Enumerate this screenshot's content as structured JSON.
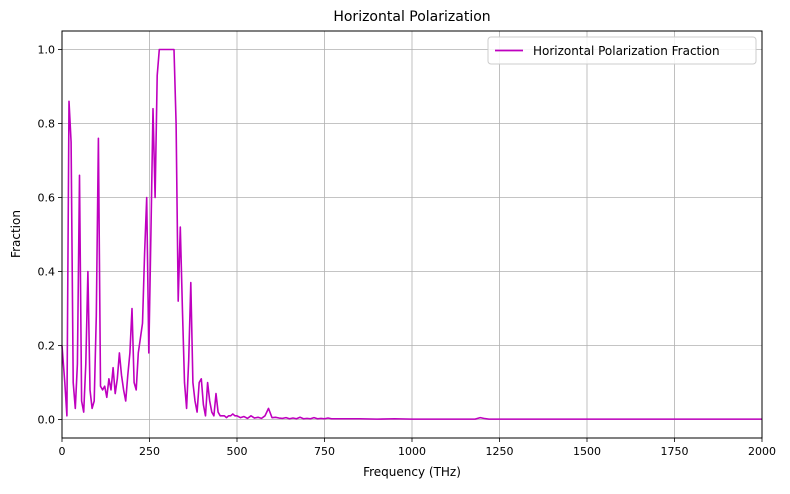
{
  "chart_data": {
    "type": "line",
    "title": "Horizontal Polarization",
    "xlabel": "Frequency (THz)",
    "ylabel": "Fraction",
    "xlim": [
      0,
      2000
    ],
    "ylim": [
      -0.05,
      1.05
    ],
    "xticks": [
      0,
      250,
      500,
      750,
      1000,
      1250,
      1500,
      1750,
      2000
    ],
    "yticks": [
      0.0,
      0.2,
      0.4,
      0.6,
      0.8,
      1.0
    ],
    "xtick_labels": [
      "0",
      "250",
      "500",
      "750",
      "1000",
      "1250",
      "1500",
      "1750",
      "2000"
    ],
    "ytick_labels": [
      "0.0",
      "0.2",
      "0.4",
      "0.6",
      "0.8",
      "1.0"
    ],
    "grid": true,
    "legend_position": "top-right",
    "series": [
      {
        "name": "Horizontal Polarization Fraction",
        "color": "#bf00bf",
        "x": [
          0,
          8,
          14,
          20,
          26,
          32,
          38,
          44,
          50,
          56,
          62,
          68,
          74,
          80,
          86,
          92,
          98,
          104,
          110,
          116,
          122,
          128,
          134,
          140,
          146,
          152,
          158,
          164,
          170,
          176,
          182,
          188,
          194,
          200,
          206,
          212,
          218,
          224,
          230,
          236,
          242,
          248,
          254,
          260,
          266,
          272,
          278,
          284,
          290,
          296,
          300,
          320,
          326,
          332,
          338,
          344,
          350,
          356,
          362,
          368,
          374,
          380,
          386,
          392,
          398,
          404,
          410,
          416,
          422,
          428,
          434,
          440,
          446,
          452,
          458,
          464,
          470,
          476,
          482,
          488,
          494,
          500,
          510,
          520,
          530,
          540,
          550,
          560,
          570,
          580,
          590,
          600,
          610,
          620,
          630,
          640,
          650,
          660,
          670,
          680,
          690,
          700,
          710,
          720,
          730,
          740,
          750,
          760,
          770,
          800,
          850,
          900,
          950,
          1000,
          1050,
          1100,
          1150,
          1180,
          1195,
          1205,
          1220,
          1250,
          1300,
          1400,
          1500,
          1600,
          1700,
          1800,
          1900,
          2000
        ],
        "y": [
          0.2,
          0.1,
          0.01,
          0.86,
          0.75,
          0.1,
          0.03,
          0.15,
          0.66,
          0.05,
          0.02,
          0.15,
          0.4,
          0.08,
          0.03,
          0.05,
          0.28,
          0.76,
          0.09,
          0.08,
          0.09,
          0.06,
          0.11,
          0.08,
          0.14,
          0.07,
          0.11,
          0.18,
          0.12,
          0.08,
          0.05,
          0.12,
          0.18,
          0.3,
          0.1,
          0.08,
          0.18,
          0.22,
          0.26,
          0.45,
          0.6,
          0.18,
          0.5,
          0.84,
          0.6,
          0.93,
          1.0,
          1.0,
          1.0,
          1.0,
          1.0,
          1.0,
          0.8,
          0.32,
          0.52,
          0.3,
          0.1,
          0.03,
          0.16,
          0.37,
          0.1,
          0.05,
          0.02,
          0.1,
          0.11,
          0.04,
          0.01,
          0.1,
          0.05,
          0.02,
          0.01,
          0.07,
          0.02,
          0.01,
          0.01,
          0.01,
          0.005,
          0.01,
          0.01,
          0.015,
          0.01,
          0.01,
          0.005,
          0.008,
          0.003,
          0.01,
          0.004,
          0.006,
          0.003,
          0.01,
          0.03,
          0.005,
          0.006,
          0.004,
          0.003,
          0.005,
          0.002,
          0.004,
          0.002,
          0.006,
          0.002,
          0.003,
          0.002,
          0.005,
          0.002,
          0.003,
          0.002,
          0.004,
          0.002,
          0.002,
          0.002,
          0.001,
          0.002,
          0.001,
          0.001,
          0.001,
          0.001,
          0.001,
          0.005,
          0.003,
          0.001,
          0.001,
          0.001,
          0.001,
          0.001,
          0.001,
          0.001,
          0.001,
          0.001,
          0.001
        ]
      }
    ]
  }
}
